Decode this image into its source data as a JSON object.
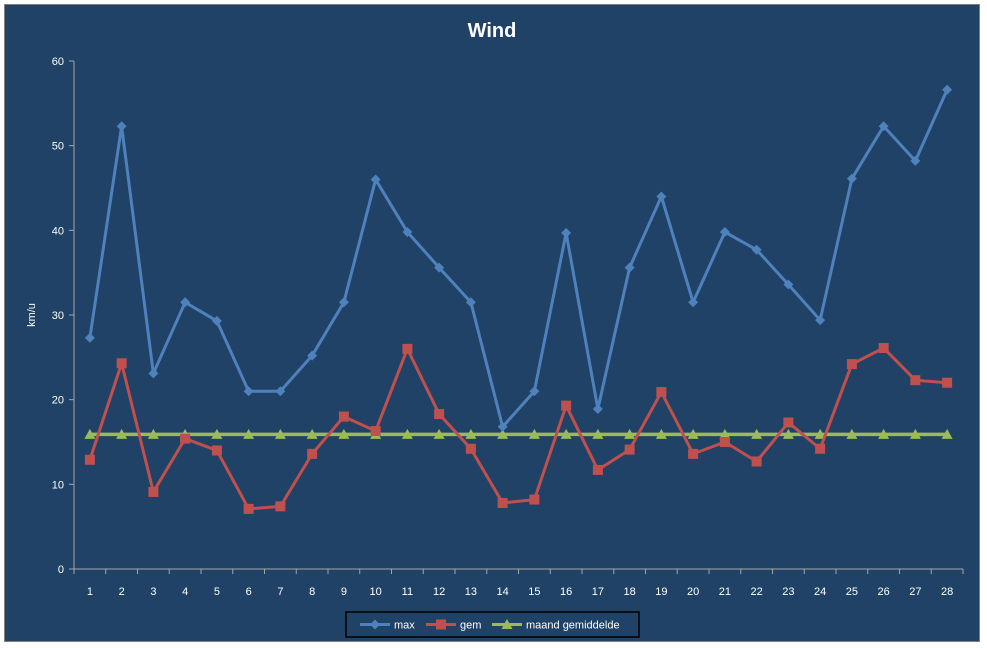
{
  "chart_data": {
    "type": "line",
    "title": "Wind",
    "xlabel": "",
    "ylabel": "km/u",
    "ylim": [
      0,
      60
    ],
    "yticks": [
      0,
      10,
      20,
      30,
      40,
      50,
      60
    ],
    "categories": [
      "1",
      "2",
      "3",
      "4",
      "5",
      "6",
      "7",
      "8",
      "9",
      "10",
      "11",
      "12",
      "13",
      "14",
      "15",
      "16",
      "17",
      "18",
      "19",
      "20",
      "21",
      "22",
      "23",
      "24",
      "25",
      "26",
      "27",
      "28"
    ],
    "grid": false,
    "legend": "bottom",
    "series": [
      {
        "name": "max",
        "color": "#4f81bd",
        "marker": "diamond",
        "values": [
          27.3,
          52.3,
          23.1,
          31.5,
          29.3,
          21.0,
          21.0,
          25.2,
          31.5,
          46.0,
          39.8,
          35.6,
          31.5,
          16.8,
          21.0,
          39.7,
          18.9,
          35.6,
          44.0,
          31.5,
          39.8,
          37.7,
          33.6,
          29.4,
          46.1,
          52.3,
          48.2,
          56.6
        ]
      },
      {
        "name": "gem",
        "color": "#c0504d",
        "marker": "square",
        "values": [
          12.9,
          24.3,
          9.1,
          15.4,
          14.0,
          7.1,
          7.4,
          13.6,
          18.0,
          16.3,
          26.0,
          18.3,
          14.2,
          7.8,
          8.2,
          19.3,
          11.7,
          14.1,
          20.9,
          13.6,
          15.0,
          12.7,
          17.3,
          14.2,
          24.2,
          26.1,
          22.3,
          22.0
        ]
      },
      {
        "name": "maand gemiddelde",
        "color": "#9bbb59",
        "marker": "triangle",
        "values": [
          15.9,
          15.9,
          15.9,
          15.9,
          15.9,
          15.9,
          15.9,
          15.9,
          15.9,
          15.9,
          15.9,
          15.9,
          15.9,
          15.9,
          15.9,
          15.9,
          15.9,
          15.9,
          15.9,
          15.9,
          15.9,
          15.9,
          15.9,
          15.9,
          15.9,
          15.9,
          15.9,
          15.9
        ]
      }
    ]
  }
}
